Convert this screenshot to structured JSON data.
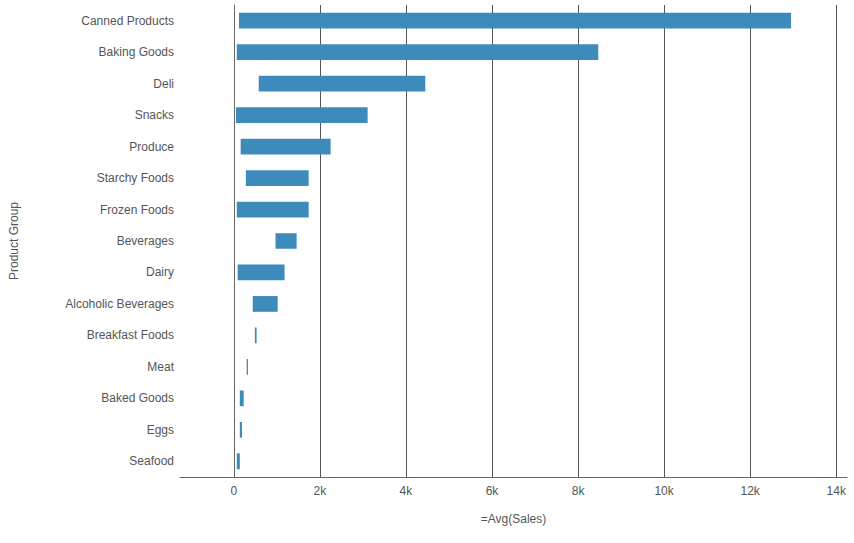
{
  "chart_data": {
    "type": "bar",
    "orientation": "horizontal",
    "grid": true,
    "x_label": "=Avg(Sales)",
    "y_label": "Product Group",
    "categories": [
      "Canned Products",
      "Baking Goods",
      "Deli",
      "Snacks",
      "Produce",
      "Starchy Foods",
      "Frozen Foods",
      "Beverages",
      "Dairy",
      "Alcoholic Beverages",
      "Breakfast Foods",
      "Meat",
      "Baked Goods",
      "Eggs",
      "Seafood"
    ],
    "values": [
      [
        120,
        12950
      ],
      [
        70,
        8470
      ],
      [
        580,
        4450
      ],
      [
        50,
        3110
      ],
      [
        160,
        2250
      ],
      [
        280,
        1740
      ],
      [
        70,
        1740
      ],
      [
        970,
        1460
      ],
      [
        90,
        1180
      ],
      [
        440,
        1020
      ],
      [
        490,
        530
      ],
      [
        300,
        330
      ],
      [
        140,
        230
      ],
      [
        140,
        190
      ],
      [
        70,
        140
      ]
    ],
    "color": "#3d8bba",
    "xlim": [
      -1250,
      14250
    ],
    "xticks": [
      0,
      {
        "value": 2000,
        "label": "2k"
      },
      {
        "value": 4000,
        "label": "4k"
      },
      {
        "value": 6000,
        "label": "6k"
      },
      {
        "value": 8000,
        "label": "8k"
      },
      {
        "value": 10000,
        "label": "10k"
      },
      {
        "value": 12000,
        "label": "12k"
      },
      {
        "value": 14000,
        "label": "14k"
      }
    ]
  }
}
